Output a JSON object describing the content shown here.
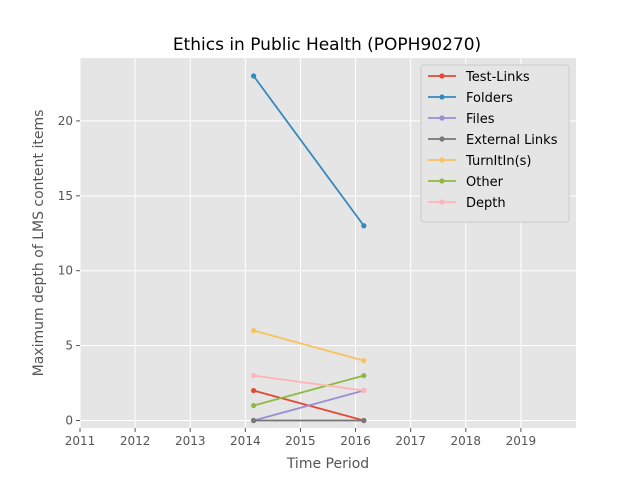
{
  "chart_data": {
    "type": "line",
    "title": "Ethics in Public Health (POPH90270)",
    "xlabel": "Time Period",
    "ylabel": "Maximum depth of LMS content items",
    "xlim": [
      2011,
      2020
    ],
    "ylim": [
      -0.5,
      24.2
    ],
    "x_ticks": [
      "2011",
      "2012",
      "2013",
      "2014",
      "2015",
      "2016",
      "2017",
      "2018",
      "2019"
    ],
    "y_ticks": [
      "0",
      "5",
      "10",
      "15",
      "20"
    ],
    "x": [
      2014.15,
      2016.15
    ],
    "grid": true,
    "legend_position": "top-right",
    "series": [
      {
        "name": "Test-Links",
        "color": "#E24A33",
        "values": [
          2,
          0
        ]
      },
      {
        "name": "Folders",
        "color": "#348ABD",
        "values": [
          23,
          13
        ]
      },
      {
        "name": "Files",
        "color": "#988ED5",
        "values": [
          0,
          2
        ]
      },
      {
        "name": "External Links",
        "color": "#777777",
        "values": [
          0,
          0
        ]
      },
      {
        "name": "TurnItIn(s)",
        "color": "#FBC15E",
        "values": [
          6,
          4
        ]
      },
      {
        "name": "Other",
        "color": "#8EBA42",
        "values": [
          1,
          3
        ]
      },
      {
        "name": "Depth",
        "color": "#FFB5B8",
        "values": [
          3,
          2
        ]
      }
    ]
  }
}
